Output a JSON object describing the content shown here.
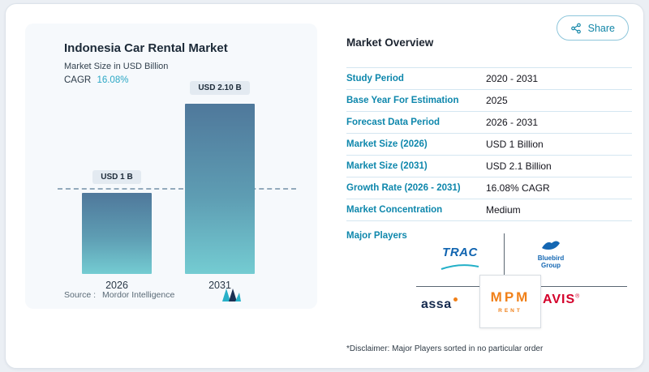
{
  "share_button": {
    "label": "Share"
  },
  "left_panel": {
    "title": "Indonesia Car Rental Market",
    "subtitle": "Market Size in USD Billion",
    "cagr_label": "CAGR",
    "cagr_value": "16.08%",
    "source_label": "Source :",
    "source_value": "Mordor Intelligence"
  },
  "chart_data": {
    "type": "bar",
    "title": "Indonesia Car Rental Market",
    "subtitle": "Market Size in USD Billion",
    "cagr": "16.08%",
    "categories": [
      "2026",
      "2031"
    ],
    "values": [
      1,
      2.1
    ],
    "value_labels": [
      "USD 1 B",
      "USD 2.10 B"
    ],
    "unit": "USD Billion",
    "ylim": [
      0,
      2.3
    ],
    "reference_line_value": 1,
    "grid": false,
    "legend": false
  },
  "overview": {
    "title": "Market Overview",
    "rows": [
      {
        "label": "Study Period",
        "value": "2020 - 2031"
      },
      {
        "label": "Base Year For Estimation",
        "value": "2025"
      },
      {
        "label": "Forecast Data Period",
        "value": "2026 - 2031"
      },
      {
        "label": "Market Size (2026)",
        "value": "USD 1 Billion"
      },
      {
        "label": "Market Size (2031)",
        "value": "USD 2.1 Billion"
      },
      {
        "label": "Growth Rate (2026 - 2031)",
        "value": "16.08% CAGR"
      },
      {
        "label": "Market Concentration",
        "value": "Medium"
      }
    ],
    "major_players_label": "Major Players",
    "players": {
      "trac": "TRAC",
      "bluebird_line1": "Bluebird",
      "bluebird_line2": "Group",
      "assa": "assa",
      "mpm": "MPM",
      "mpm_sub": "RENT",
      "avis": "AVIS"
    },
    "disclaimer": "*Disclaimer: Major Players sorted in no particular order"
  },
  "colors": {
    "accent_teal": "#0e87ac",
    "cagr_teal": "#2aa7c5",
    "bar_gradient_top": "#4f789b",
    "bar_gradient_bottom": "#74ccd2",
    "mpm_orange": "#f08019",
    "avis_red": "#d4002a",
    "trac_blue": "#1064b0",
    "bluebird_blue": "#1467b3",
    "assa_navy": "#152a4e"
  }
}
